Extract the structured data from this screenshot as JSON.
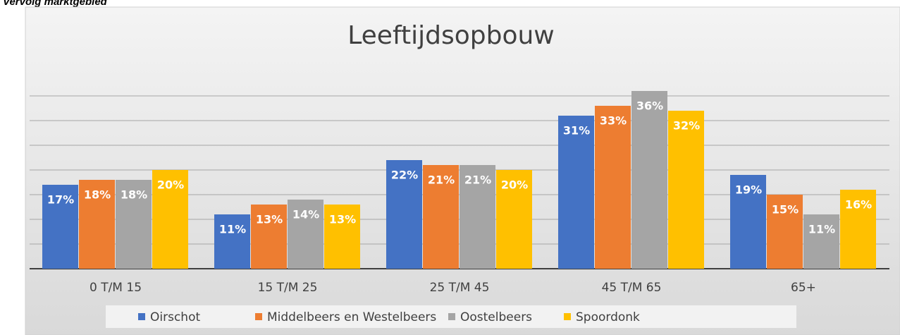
{
  "header": "Vervolg marktgebied",
  "chart_data": {
    "type": "bar",
    "title": "Leeftijdsopbouw",
    "categories": [
      "0 T/M 15",
      "15 T/M 25",
      "25 T/M 45",
      "45 T/M 65",
      "65+"
    ],
    "series": [
      {
        "name": "Oirschot",
        "color": "#4472c4",
        "values": [
          17,
          11,
          22,
          31,
          19
        ],
        "value_labels": [
          "17%",
          "11%",
          "22%",
          "31%",
          "19%"
        ]
      },
      {
        "name": "Middelbeers en Westelbeers",
        "color": "#ed7d31",
        "values": [
          18,
          13,
          21,
          33,
          15
        ],
        "value_labels": [
          "18%",
          "13%",
          "21%",
          "33%",
          "15%"
        ]
      },
      {
        "name": "Oostelbeers",
        "color": "#a5a5a5",
        "values": [
          18,
          14,
          21,
          36,
          11
        ],
        "value_labels": [
          "18%",
          "14%",
          "21%",
          "36%",
          "11%"
        ]
      },
      {
        "name": "Spoordonk",
        "color": "#ffc000",
        "values": [
          20,
          13,
          20,
          32,
          16
        ],
        "value_labels": [
          "20%",
          "13%",
          "20%",
          "32%",
          "16%"
        ]
      }
    ],
    "ylim": [
      0,
      35
    ],
    "yticks": [
      0,
      5,
      10,
      15,
      20,
      25,
      30,
      35
    ],
    "grid": true,
    "legend": "bottom"
  }
}
